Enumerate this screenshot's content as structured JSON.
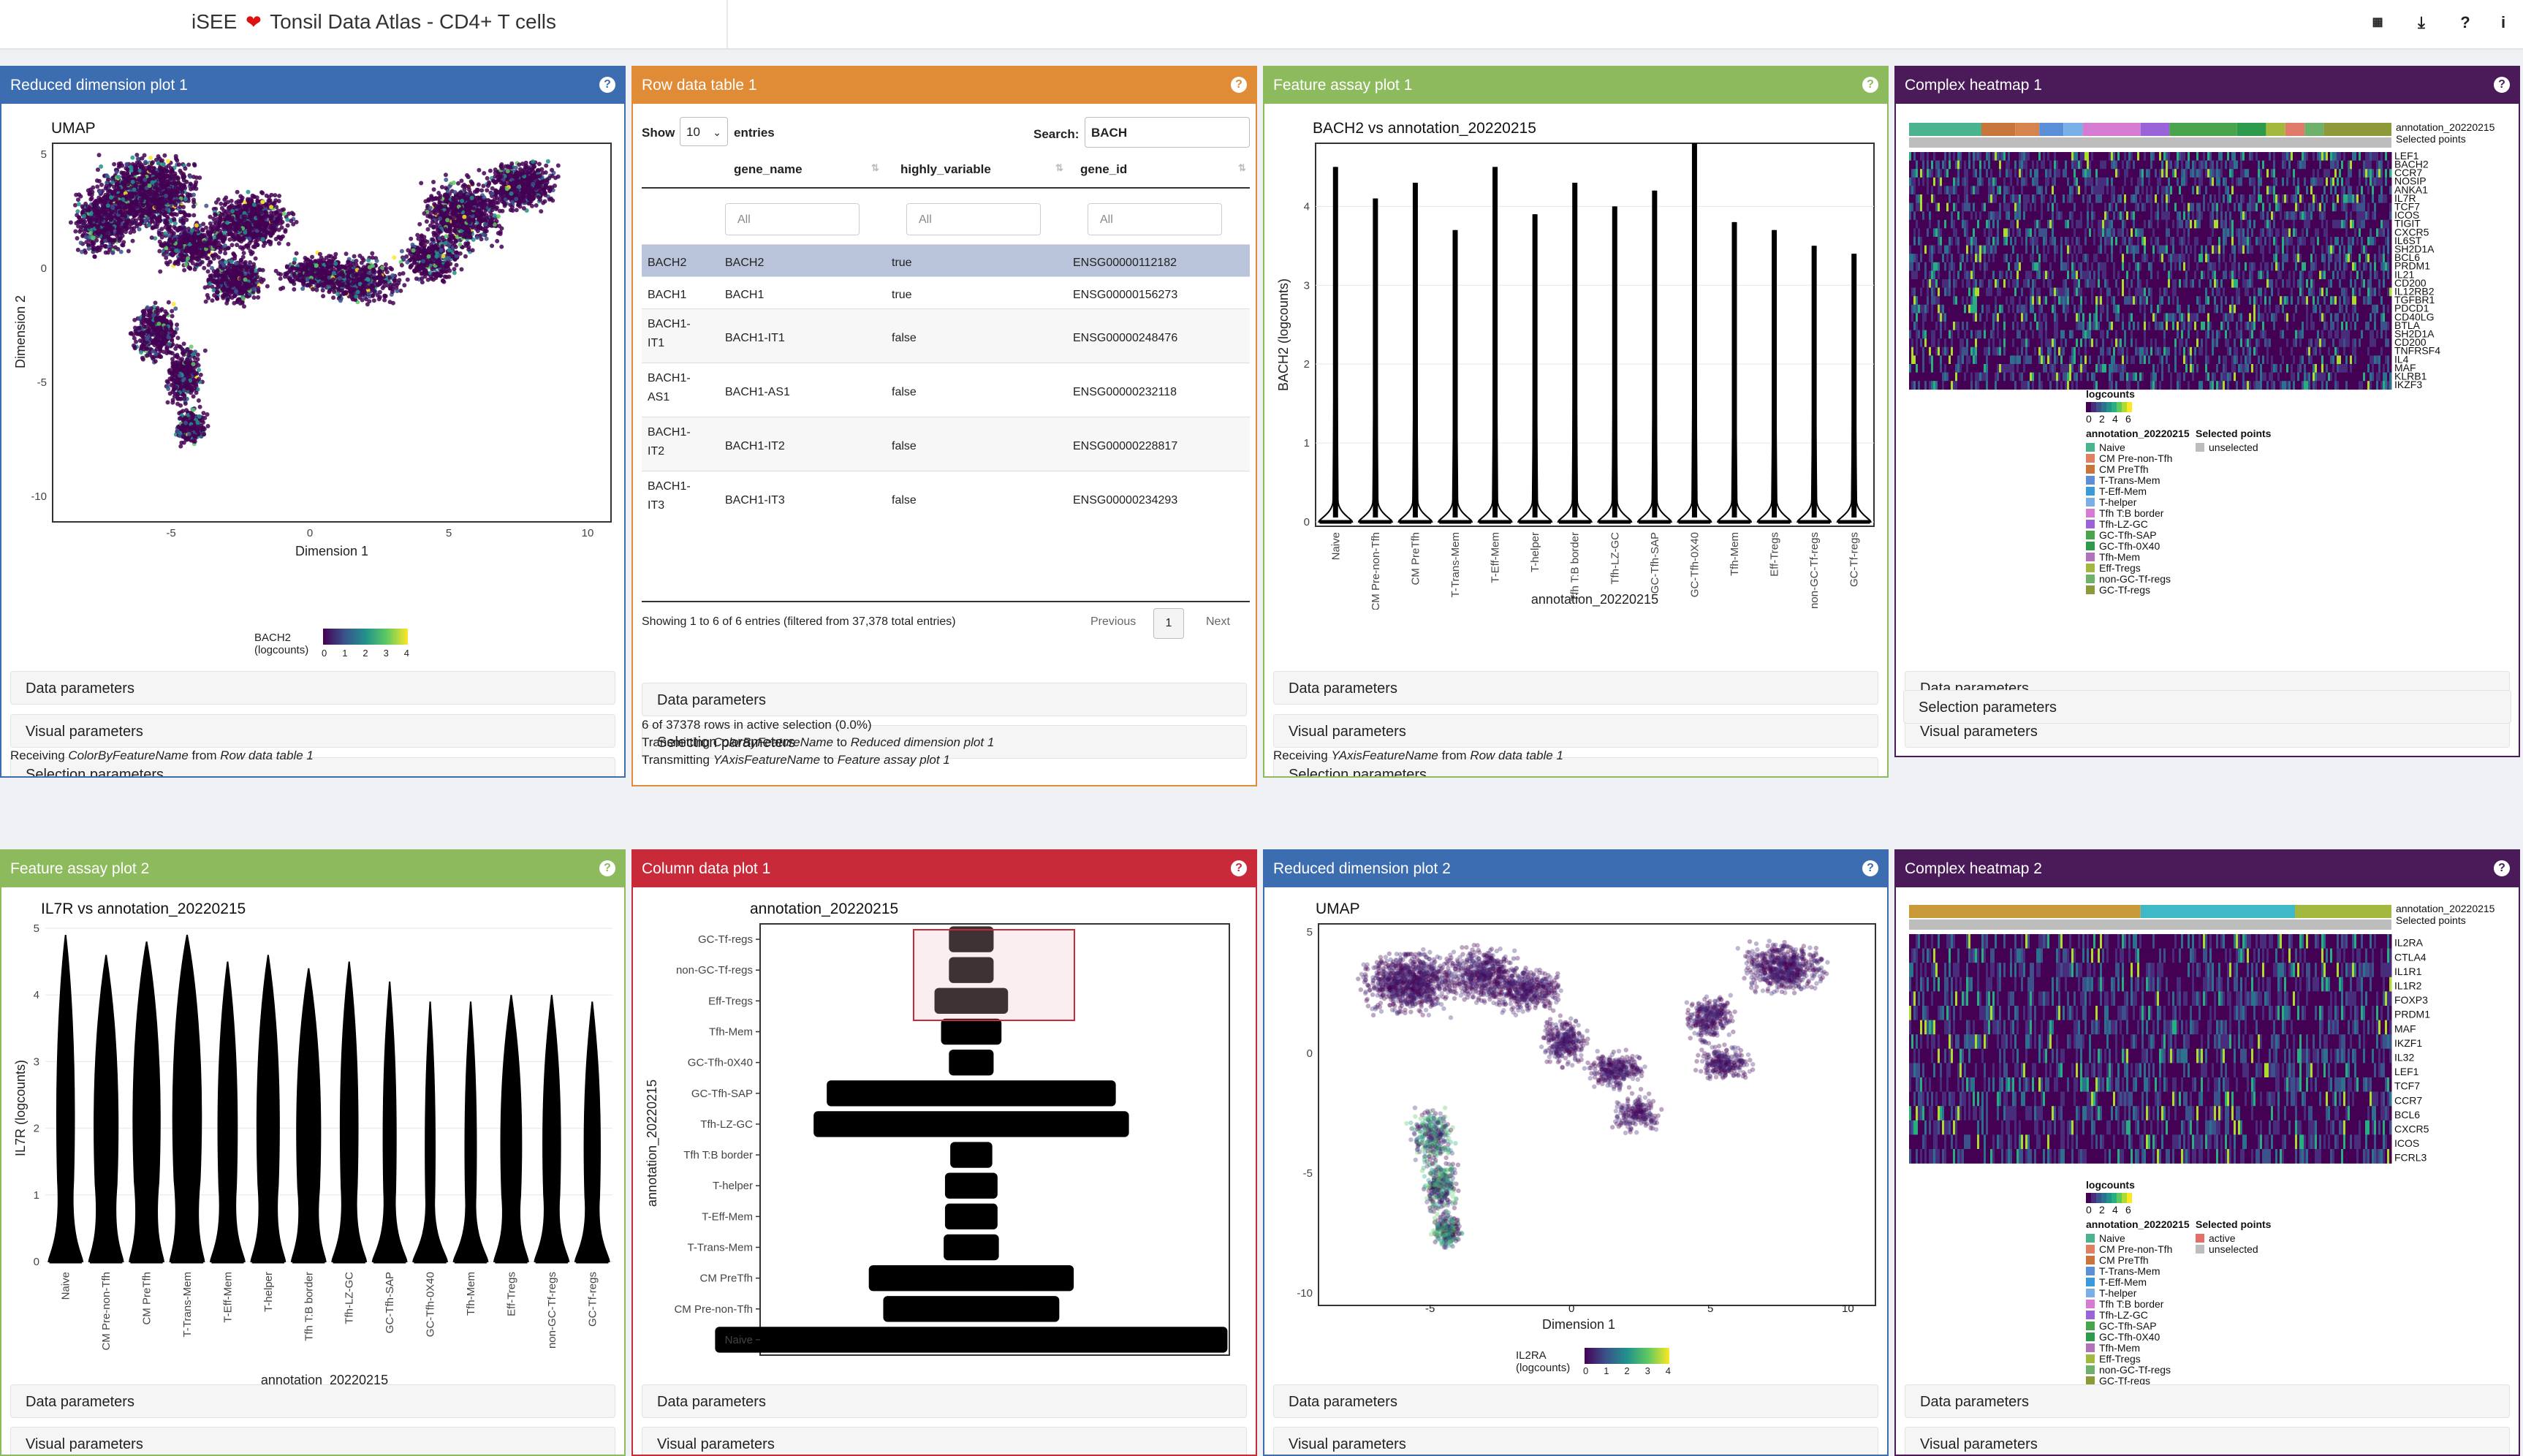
{
  "app": {
    "title_left": "iSEE",
    "heart": "❤️",
    "title_right": "Tonsil Data Atlas - CD4+ T cells",
    "toolbar_icons": [
      "qr-icon",
      "download-icon",
      "help-icon",
      "info-icon"
    ]
  },
  "colors": {
    "blue": "#3c6db0",
    "orange": "#e08b36",
    "green": "#8dba5c",
    "purple": "#4b1a58",
    "red": "#c82a3a"
  },
  "common": {
    "data_parameters": "Data parameters",
    "visual_parameters": "Visual parameters",
    "selection_parameters": "Selection parameters"
  },
  "panels": {
    "redim1": {
      "title": "Reduced dimension plot 1",
      "plot_title": "UMAP",
      "xlabel": "Dimension 1",
      "ylabel": "Dimension 2",
      "xticks": [
        "-5",
        "0",
        "5",
        "10"
      ],
      "yticks": [
        "5",
        "0",
        "-5",
        "-10"
      ],
      "legend_title": "BACH2\n(logcounts)",
      "legend_ticks": [
        "0",
        "1",
        "2",
        "3",
        "4"
      ],
      "footer_prefix": "Receiving",
      "footer_var": "ColorByFeatureName",
      "footer_mid": "from",
      "footer_source": "Row data table 1"
    },
    "rowtable": {
      "title": "Row data table 1",
      "show_label": "Show",
      "entries_value": "10",
      "entries_label": "entries",
      "search_label": "Search:",
      "search_value": "BACH",
      "columns": [
        "gene_name",
        "highly_variable",
        "gene_id"
      ],
      "filter_placeholder": "All",
      "rows": [
        {
          "id": "BACH2",
          "name": "BACH2",
          "hv": "true",
          "gid": "ENSG00000112182"
        },
        {
          "id": "BACH1",
          "name": "BACH1",
          "hv": "true",
          "gid": "ENSG00000156273"
        },
        {
          "id": "BACH1-\nIT1",
          "name": "BACH1-IT1",
          "hv": "false",
          "gid": "ENSG00000248476"
        },
        {
          "id": "BACH1-\nAS1",
          "name": "BACH1-AS1",
          "hv": "false",
          "gid": "ENSG00000232118"
        },
        {
          "id": "BACH1-\nIT2",
          "name": "BACH1-IT2",
          "hv": "false",
          "gid": "ENSG00000228817"
        },
        {
          "id": "BACH1-\nIT3",
          "name": "BACH1-IT3",
          "hv": "false",
          "gid": "ENSG00000234293"
        }
      ],
      "info": "Showing 1 to 6 of 6 entries (filtered from 37,378 total entries)",
      "prev": "Previous",
      "page": "1",
      "next": "Next",
      "selection_info": "6 of 37378 rows in active selection (0.0%)",
      "tx1_prefix": "Transmitting",
      "tx1_var": "ColorByFeatureName",
      "tx1_mid": "to",
      "tx1_target": "Reduced dimension plot 1",
      "tx2_prefix": "Transmitting",
      "tx2_var": "YAxisFeatureName",
      "tx2_mid": "to",
      "tx2_target": "Feature assay plot 1"
    },
    "fap1": {
      "title": "Feature assay plot 1",
      "plot_title": "BACH2 vs annotation_20220215",
      "xlabel": "annotation_20220215",
      "ylabel": "BACH2 (logcounts)",
      "yticks": [
        "4",
        "3",
        "2",
        "1",
        "0"
      ],
      "footer_prefix": "Receiving",
      "footer_var": "YAxisFeatureName",
      "footer_mid": "from",
      "footer_source": "Row data table 1"
    },
    "heat1": {
      "title": "Complex heatmap 1",
      "annot_label": "annotation_20220215",
      "sel_label": "Selected points",
      "genes": [
        "LEF1",
        "BACH2",
        "CCR7",
        "NOSIP",
        "ANKA1",
        "IL7R",
        "TCF7",
        "ICOS",
        "TIGIT",
        "CXCR5",
        "IL6ST",
        "SH2D1A",
        "BCL6",
        "PRDM1",
        "IL21",
        "CD200",
        "IL12RB2",
        "TGFBR1",
        "PDCD1",
        "CD40LG",
        "BTLA",
        "SH2D1A",
        "CD200",
        "TNFRSF4",
        "IL4",
        "MAF",
        "KLRB1",
        "IKZF3"
      ],
      "legend_counts": "logcounts",
      "legend_ticks": [
        "0",
        "2",
        "4",
        "6"
      ],
      "legend_annot": "annotation_20220215",
      "legend_sel": "Selected points",
      "sel_items": [
        "unselected"
      ],
      "categories": [
        "Naive",
        "CM Pre-non-Tfh",
        "CM PreTfh",
        "T-Trans-Mem",
        "T-Eff-Mem",
        "T-helper",
        "Tfh T:B border",
        "Tfh-LZ-GC",
        "GC-Tfh-SAP",
        "GC-Tfh-0X40",
        "Tfh-Mem",
        "Eff-Tregs",
        "non-GC-Tf-regs",
        "GC-Tf-regs"
      ]
    },
    "fap2": {
      "title": "Feature assay plot 2",
      "plot_title": "IL7R vs annotation_20220215",
      "xlabel": "annotation_20220215",
      "ylabel": "IL7R (logcounts)",
      "yticks": [
        "5",
        "4",
        "3",
        "2",
        "1",
        "0"
      ]
    },
    "coldata1": {
      "title": "Column data plot 1",
      "plot_title": "annotation_20220215",
      "ylabel": "annotation_20220215"
    },
    "redim2": {
      "title": "Reduced dimension plot 2",
      "plot_title": "UMAP",
      "xlabel": "Dimension 1",
      "ylabel": "Dimension 2",
      "xticks": [
        "-5",
        "0",
        "5",
        "10"
      ],
      "yticks": [
        "5",
        "0",
        "-5",
        "-10"
      ],
      "legend_title": "IL2RA\n(logcounts)",
      "legend_ticks": [
        "0",
        "1",
        "2",
        "3",
        "4"
      ]
    },
    "heat2": {
      "title": "Complex heatmap 2",
      "annot_label": "annotation_20220215",
      "sel_label": "Selected points",
      "genes": [
        "IL2RA",
        "CTLA4",
        "IL1R1",
        "IL1R2",
        "FOXP3",
        "PRDM1",
        "MAF",
        "IKZF1",
        "IL32",
        "LEF1",
        "TCF7",
        "CCR7",
        "BCL6",
        "CXCR5",
        "ICOS",
        "FCRL3"
      ],
      "legend_counts": "logcounts",
      "legend_ticks": [
        "0",
        "2",
        "4",
        "6"
      ],
      "legend_annot": "annotation_20220215",
      "legend_sel": "Selected points",
      "sel_items": [
        "active",
        "unselected"
      ],
      "categories": [
        "Naive",
        "CM Pre-non-Tfh",
        "CM PreTfh",
        "T-Trans-Mem",
        "T-Eff-Mem",
        "T-helper",
        "Tfh T:B border",
        "Tfh-LZ-GC",
        "GC-Tfh-SAP",
        "GC-Tfh-0X40",
        "Tfh-Mem",
        "Eff-Tregs",
        "non-GC-Tf-regs",
        "GC-Tf-regs"
      ]
    }
  },
  "chart_data": [
    {
      "type": "violin",
      "title": "BACH2 vs annotation_20220215",
      "xlabel": "annotation_20220215",
      "ylabel": "BACH2 (logcounts)",
      "categories": [
        "Naive",
        "CM Pre-non-Tfh",
        "CM PreTfh",
        "T-Trans-Mem",
        "T-Eff-Mem",
        "T-helper",
        "Tfh T:B border",
        "Tfh-LZ-GC",
        "GC-Tfh-SAP",
        "GC-Tfh-0X40",
        "Tfh-Mem",
        "Eff-Tregs",
        "non-GC-Tf-regs",
        "GC-Tf-regs"
      ],
      "max_values": [
        4.5,
        4.1,
        4.3,
        3.7,
        4.5,
        3.9,
        4.3,
        4.0,
        4.2,
        4.8,
        3.8,
        3.7,
        3.5,
        3.4
      ],
      "ylim": [
        0,
        4.8
      ]
    },
    {
      "type": "violin",
      "title": "IL7R vs annotation_20220215",
      "xlabel": "annotation_20220215",
      "ylabel": "IL7R (logcounts)",
      "categories": [
        "Naive",
        "CM Pre-non-Tfh",
        "CM PreTfh",
        "T-Trans-Mem",
        "T-Eff-Mem",
        "T-helper",
        "Tfh T:B border",
        "Tfh-LZ-GC",
        "GC-Tfh-SAP",
        "GC-Tfh-0X40",
        "Tfh-Mem",
        "Eff-Tregs",
        "non-GC-Tf-regs",
        "GC-Tf-regs"
      ],
      "max_values": [
        4.9,
        4.6,
        4.8,
        4.9,
        4.5,
        4.6,
        4.4,
        4.5,
        4.2,
        3.9,
        3.9,
        4.0,
        4.0,
        3.9
      ],
      "median_width": [
        0.55,
        0.75,
        0.85,
        0.9,
        0.6,
        0.7,
        0.75,
        0.55,
        0.4,
        0.3,
        0.35,
        0.65,
        0.55,
        0.5
      ],
      "ylim": [
        0,
        5
      ]
    },
    {
      "type": "bar",
      "title": "annotation_20220215",
      "categories": [
        "GC-Tf-regs",
        "non-GC-Tf-regs",
        "Eff-Tregs",
        "Tfh-Mem",
        "GC-Tfh-0X40",
        "GC-Tfh-SAP",
        "Tfh-LZ-GC",
        "Tfh T:B border",
        "T-helper",
        "T-Eff-Mem",
        "T-Trans-Mem",
        "CM PreTfh",
        "CM Pre-non-Tfh",
        "Naive"
      ],
      "relative_width": [
        0.17,
        0.17,
        0.28,
        0.23,
        0.17,
        1.1,
        1.2,
        0.16,
        0.2,
        0.2,
        0.21,
        0.78,
        0.67,
        1.95
      ]
    }
  ]
}
